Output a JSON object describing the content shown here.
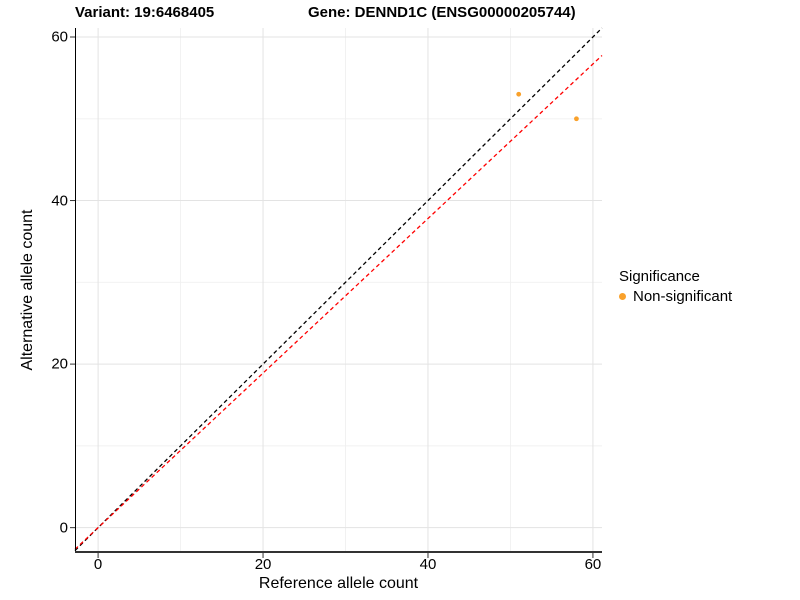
{
  "header": {
    "variant_title": "Variant: 19:6468405",
    "gene_title": "Gene: DENND1C (ENSG00000205744)"
  },
  "chart_data": {
    "type": "scatter",
    "xlabel": "Reference allele count",
    "ylabel": "Alternative allele count",
    "xlim": [
      -2.8,
      61.1
    ],
    "ylim": [
      -3.1,
      61.1
    ],
    "x_ticks": [
      0,
      20,
      40,
      60
    ],
    "y_ticks": [
      0,
      20,
      40,
      60
    ],
    "x_minor_ticks": [
      10,
      30,
      50
    ],
    "y_minor_ticks": [
      10,
      30,
      50
    ],
    "grid": true,
    "colors": {
      "major_grid": "#E3E3E3",
      "minor_grid": "#F0F0F0",
      "axis_line": "#333333",
      "identity_line": "#000000",
      "fit_line": "#FF0000",
      "point": "#F9A12B"
    },
    "series": [
      {
        "name": "Non-significant",
        "color": "#F9A12B",
        "points": [
          {
            "x": 51,
            "y": 53
          },
          {
            "x": 58,
            "y": 50
          }
        ]
      }
    ],
    "reference_lines": [
      {
        "name": "identity",
        "slope": 1.0,
        "intercept": 0,
        "color": "#000000",
        "style": "dashed"
      },
      {
        "name": "fitted-ratio",
        "slope": 0.945,
        "intercept": 0,
        "color": "#FF0000",
        "style": "dashed"
      }
    ],
    "legend": {
      "position": "right",
      "title": "Significance",
      "entries": [
        {
          "label": "Non-significant",
          "color": "#F9A12B"
        }
      ]
    }
  }
}
